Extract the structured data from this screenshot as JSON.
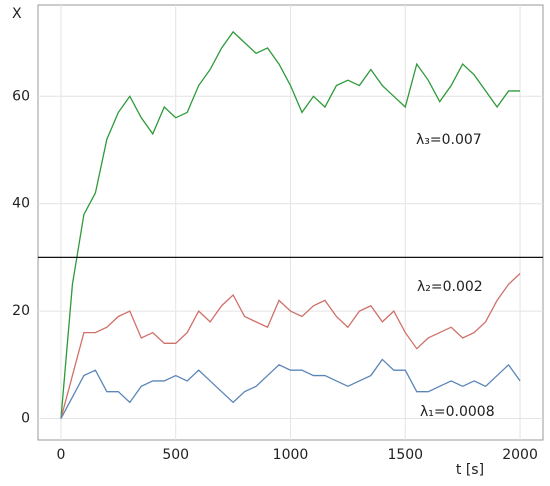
{
  "chart_data": {
    "type": "line",
    "xlabel": "t [s]",
    "ylabel": "X",
    "x": [
      0,
      50,
      100,
      150,
      200,
      250,
      300,
      350,
      400,
      450,
      500,
      550,
      600,
      650,
      700,
      750,
      800,
      850,
      900,
      950,
      1000,
      1050,
      1100,
      1150,
      1200,
      1250,
      1300,
      1350,
      1400,
      1450,
      1500,
      1550,
      1600,
      1650,
      1700,
      1750,
      1800,
      1850,
      1900,
      1950,
      2000
    ],
    "series": [
      {
        "name": "λ₃=0.007",
        "color": "#2e9a3a",
        "values": [
          0,
          25,
          38,
          42,
          52,
          57,
          60,
          56,
          53,
          58,
          56,
          57,
          62,
          65,
          69,
          72,
          70,
          68,
          69,
          66,
          62,
          57,
          60,
          58,
          62,
          63,
          62,
          65,
          62,
          60,
          58,
          66,
          63,
          59,
          62,
          66,
          64,
          61,
          58,
          61,
          61
        ]
      },
      {
        "name": "λ₂=0.002",
        "color": "#d0706a",
        "values": [
          0,
          8,
          16,
          16,
          17,
          19,
          20,
          15,
          16,
          14,
          14,
          16,
          20,
          18,
          21,
          23,
          19,
          18,
          17,
          22,
          20,
          19,
          21,
          22,
          19,
          17,
          20,
          21,
          18,
          20,
          16,
          13,
          15,
          16,
          17,
          15,
          16,
          18,
          22,
          25,
          27
        ]
      },
      {
        "name": "λ₁=0.0008",
        "color": "#5b86b8",
        "values": [
          0,
          4,
          8,
          9,
          5,
          5,
          3,
          6,
          7,
          7,
          8,
          7,
          9,
          7,
          5,
          3,
          5,
          6,
          8,
          10,
          9,
          9,
          8,
          8,
          7,
          6,
          7,
          8,
          11,
          9,
          9,
          5,
          5,
          6,
          7,
          6,
          7,
          6,
          8,
          10,
          7
        ]
      }
    ],
    "hline": 30,
    "xlim": [
      -100,
      2100
    ],
    "ylim": [
      -4,
      77
    ],
    "xticks": [
      0,
      500,
      1000,
      1500,
      2000
    ],
    "yticks": [
      0,
      20,
      40,
      60
    ],
    "grid": true
  }
}
